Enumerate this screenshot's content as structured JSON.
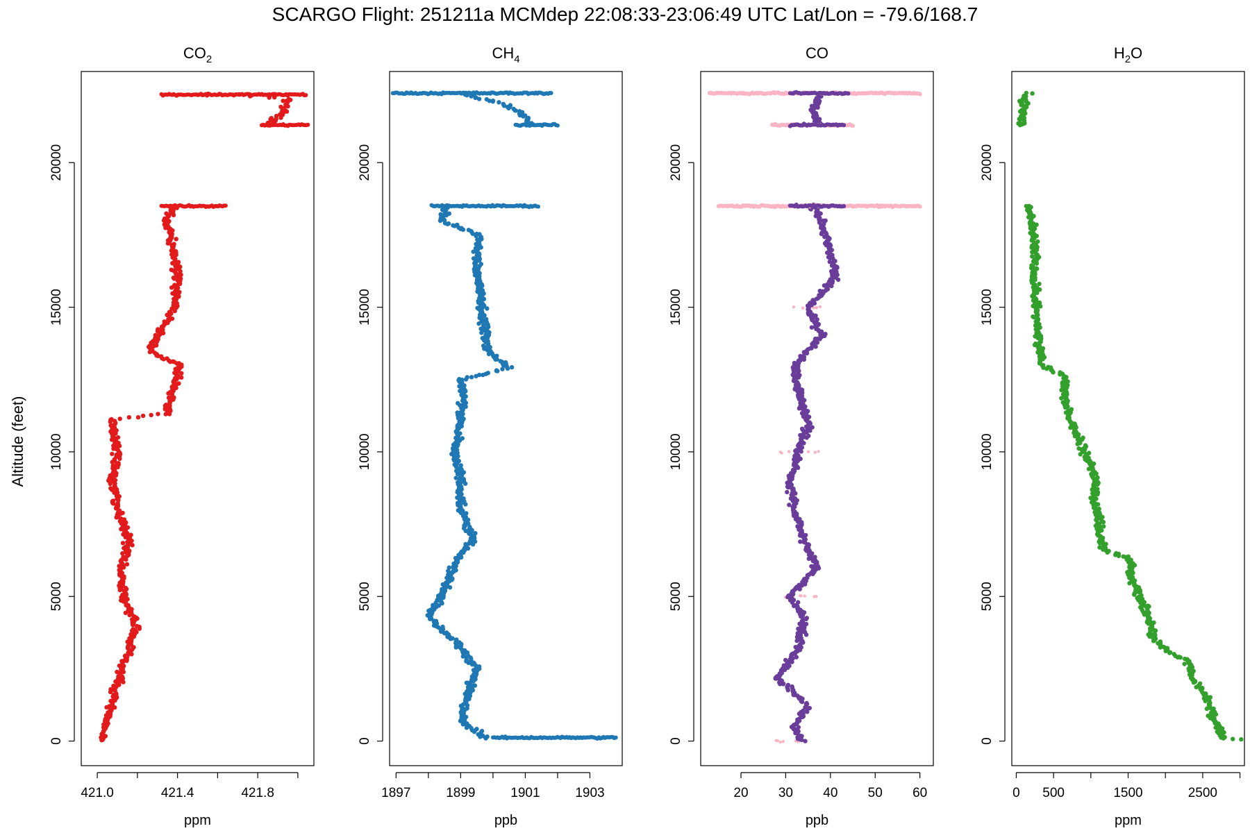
{
  "title": "SCARGO Flight: 251211a  MCMdep  22:08:33-23:06:49 UTC  Lat/Lon = -79.6/168.7",
  "ylabel": "Altitude (feet)",
  "chart_data": [
    {
      "type": "scatter",
      "title_main": "CO",
      "title_sub": "2",
      "xlabel": "ppm",
      "ylabel": "Altitude (feet)",
      "xlim": [
        420.92,
        422.08
      ],
      "ylim": [
        -850,
        23150
      ],
      "xticks": [
        421.0,
        421.2,
        421.4,
        421.6,
        421.8,
        422.0
      ],
      "xtick_labels": [
        "421.0",
        "",
        "421.4",
        "",
        "421.8",
        ""
      ],
      "yticks": [
        0,
        5000,
        10000,
        15000,
        20000
      ],
      "ytick_labels": [
        "0",
        "5000",
        "10000",
        "15000",
        "20000"
      ],
      "colors": [
        "#e31a1c"
      ],
      "series": [
        {
          "color": "#e31a1c",
          "profile": [
            [
              0,
              421.02
            ],
            [
              1000,
              421.06
            ],
            [
              2000,
              421.1
            ],
            [
              3000,
              421.15
            ],
            [
              4000,
              421.19
            ],
            [
              5000,
              421.13
            ],
            [
              6000,
              421.12
            ],
            [
              7000,
              421.16
            ],
            [
              8000,
              421.1
            ],
            [
              9000,
              421.08
            ],
            [
              10000,
              421.1
            ],
            [
              11100,
              421.07
            ],
            [
              11300,
              421.34
            ],
            [
              12000,
              421.37
            ],
            [
              13000,
              421.41
            ],
            [
              13500,
              421.26
            ],
            [
              14000,
              421.3
            ],
            [
              15000,
              421.39
            ],
            [
              16000,
              421.4
            ],
            [
              17000,
              421.38
            ],
            [
              18000,
              421.35
            ],
            [
              18500,
              421.38
            ]
          ]
        },
        {
          "color": "#e31a1c",
          "profile": [
            [
              21300,
              421.85
            ],
            [
              21800,
              421.93
            ],
            [
              22200,
              421.95
            ],
            [
              22400,
              421.55
            ]
          ]
        }
      ],
      "h_bands": [
        {
          "y": 18500,
          "x": [
            421.32,
            421.64
          ],
          "color": "#e31a1c"
        },
        {
          "y": 22350,
          "x": [
            421.32,
            422.04
          ],
          "color": "#e31a1c"
        },
        {
          "y": 21300,
          "x": [
            421.82,
            422.05
          ],
          "color": "#e31a1c"
        }
      ]
    },
    {
      "type": "scatter",
      "title_main": "CH",
      "title_sub": "4",
      "xlabel": "ppb",
      "ylabel": "Altitude (feet)",
      "xlim": [
        1896.8,
        1904.0
      ],
      "ylim": [
        -850,
        23150
      ],
      "xticks": [
        1897,
        1898,
        1899,
        1900,
        1901,
        1902,
        1903
      ],
      "xtick_labels": [
        "1897",
        "",
        "1899",
        "",
        "1901",
        "",
        "1903"
      ],
      "yticks": [
        0,
        5000,
        10000,
        15000,
        20000
      ],
      "ytick_labels": [
        "0",
        "5000",
        "10000",
        "15000",
        "20000"
      ],
      "colors": [
        "#1f78b4"
      ],
      "series": [
        {
          "color": "#1f78b4",
          "profile": [
            [
              100,
              1899.8
            ],
            [
              700,
              1899.0
            ],
            [
              1500,
              1899.2
            ],
            [
              2500,
              1899.5
            ],
            [
              3500,
              1898.8
            ],
            [
              4300,
              1898.0
            ],
            [
              4800,
              1898.3
            ],
            [
              5500,
              1898.6
            ],
            [
              6300,
              1898.9
            ],
            [
              7000,
              1899.4
            ],
            [
              8000,
              1899.0
            ],
            [
              9000,
              1899.0
            ],
            [
              10000,
              1898.8
            ],
            [
              11000,
              1899.0
            ],
            [
              12000,
              1899.1
            ],
            [
              12500,
              1899.0
            ],
            [
              12900,
              1900.5
            ],
            [
              13500,
              1899.8
            ],
            [
              14500,
              1899.7
            ],
            [
              15500,
              1899.6
            ],
            [
              16500,
              1899.5
            ],
            [
              17500,
              1899.6
            ],
            [
              18000,
              1898.4
            ],
            [
              18500,
              1898.6
            ]
          ]
        },
        {
          "color": "#1f78b4",
          "profile": [
            [
              21300,
              1901.2
            ],
            [
              21700,
              1900.9
            ],
            [
              22000,
              1900.4
            ],
            [
              22400,
              1899.0
            ]
          ]
        }
      ],
      "h_bands": [
        {
          "y": 18500,
          "x": [
            1898.1,
            1901.4
          ],
          "color": "#1f78b4"
        },
        {
          "y": 22400,
          "x": [
            1896.9,
            1901.8
          ],
          "color": "#1f78b4"
        },
        {
          "y": 21300,
          "x": [
            1900.7,
            1902.0
          ],
          "color": "#1f78b4"
        },
        {
          "y": 120,
          "x": [
            1900.0,
            1903.8
          ],
          "color": "#1f78b4"
        }
      ]
    },
    {
      "type": "scatter",
      "title_main": "CO",
      "title_sub": "",
      "xlabel": "ppb",
      "ylabel": "Altitude (feet)",
      "xlim": [
        11.0,
        63.0
      ],
      "ylim": [
        -850,
        23150
      ],
      "xticks": [
        20,
        30,
        40,
        50,
        60
      ],
      "xtick_labels": [
        "20",
        "30",
        "40",
        "50",
        "60"
      ],
      "yticks": [
        0,
        5000,
        10000,
        15000,
        20000
      ],
      "ytick_labels": [
        "0",
        "5000",
        "10000",
        "15000",
        "20000"
      ],
      "colors": [
        "#fbb4c4",
        "#6a3d9a"
      ],
      "series": [
        {
          "color": "#fbb4c4",
          "scatter_spread": 9,
          "profile": [
            [
              0,
              30
            ],
            [
              5000,
              32
            ],
            [
              10000,
              33
            ],
            [
              15000,
              36
            ],
            [
              18500,
              37
            ]
          ]
        },
        {
          "color": "#6a3d9a",
          "profile": [
            [
              0,
              34
            ],
            [
              500,
              32
            ],
            [
              1200,
              35
            ],
            [
              2200,
              28
            ],
            [
              3200,
              33
            ],
            [
              4300,
              34
            ],
            [
              5000,
              31
            ],
            [
              6000,
              37
            ],
            [
              7000,
              34
            ],
            [
              8000,
              32
            ],
            [
              9000,
              31
            ],
            [
              10000,
              33
            ],
            [
              11000,
              35
            ],
            [
              12000,
              33
            ],
            [
              13000,
              32
            ],
            [
              14000,
              38
            ],
            [
              15000,
              35
            ],
            [
              16000,
              41
            ],
            [
              17000,
              40
            ],
            [
              18000,
              38
            ],
            [
              18500,
              36
            ]
          ]
        },
        {
          "color": "#6a3d9a",
          "profile": [
            [
              21300,
              37
            ],
            [
              21800,
              36
            ],
            [
              22400,
              38
            ]
          ]
        }
      ],
      "h_bands": [
        {
          "y": 18500,
          "x": [
            15,
            60
          ],
          "color": "#fbb4c4"
        },
        {
          "y": 22400,
          "x": [
            13,
            60
          ],
          "color": "#fbb4c4"
        },
        {
          "y": 21300,
          "x": [
            27,
            45
          ],
          "color": "#fbb4c4"
        },
        {
          "y": 18500,
          "x": [
            31,
            43
          ],
          "color": "#6a3d9a"
        },
        {
          "y": 22400,
          "x": [
            31,
            44
          ],
          "color": "#6a3d9a"
        },
        {
          "y": 21300,
          "x": [
            31,
            43
          ],
          "color": "#6a3d9a"
        }
      ]
    },
    {
      "type": "scatter",
      "title_main": "H",
      "title_sub": "2",
      "title_tail": "O",
      "xlabel": "ppm",
      "ylabel": "Altitude (feet)",
      "xlim": [
        -60,
        3060
      ],
      "ylim": [
        -850,
        23150
      ],
      "xticks": [
        0,
        500,
        1000,
        1500,
        2000,
        2500,
        3000
      ],
      "xtick_labels": [
        "0",
        "500",
        "",
        "1500",
        "",
        "2500",
        ""
      ],
      "yticks": [
        0,
        5000,
        10000,
        15000,
        20000
      ],
      "ytick_labels": [
        "0",
        "5000",
        "10000",
        "15000",
        "20000"
      ],
      "colors": [
        "#33a02c"
      ],
      "series": [
        {
          "color": "#33a02c",
          "profile": [
            [
              50,
              3000
            ],
            [
              100,
              2780
            ],
            [
              600,
              2680
            ],
            [
              1600,
              2550
            ],
            [
              2200,
              2350
            ],
            [
              2800,
              2320
            ],
            [
              3000,
              2100
            ],
            [
              3500,
              1850
            ],
            [
              4500,
              1750
            ],
            [
              5500,
              1550
            ],
            [
              6300,
              1520
            ],
            [
              6600,
              1170
            ],
            [
              7500,
              1120
            ],
            [
              8500,
              1050
            ],
            [
              9000,
              1070
            ],
            [
              10000,
              920
            ],
            [
              11200,
              700
            ],
            [
              12000,
              650
            ],
            [
              12600,
              650
            ],
            [
              13000,
              350
            ],
            [
              14000,
              300
            ],
            [
              15000,
              260
            ],
            [
              16000,
              240
            ],
            [
              17000,
              250
            ],
            [
              18000,
              200
            ],
            [
              18500,
              160
            ]
          ]
        },
        {
          "color": "#33a02c",
          "profile": [
            [
              21300,
              70
            ],
            [
              21800,
              80
            ],
            [
              22300,
              130
            ],
            [
              22400,
              190
            ]
          ]
        }
      ],
      "h_bands": []
    }
  ]
}
